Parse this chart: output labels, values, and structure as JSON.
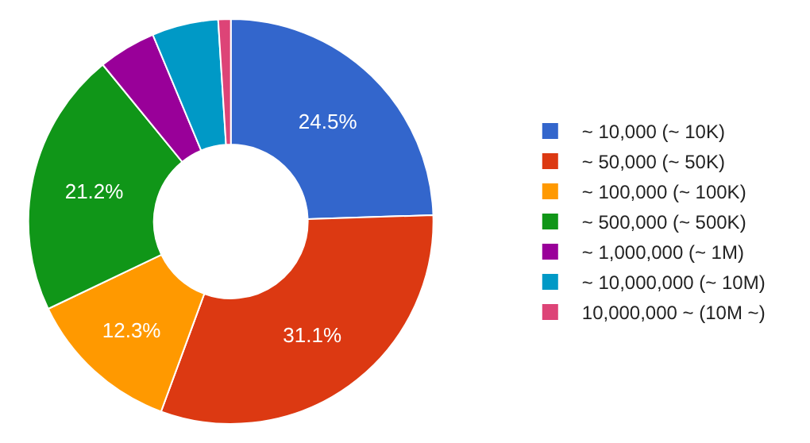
{
  "chart_data": {
    "type": "donut",
    "categories": [
      "~ 10,000 (~ 10K)",
      "~ 50,000 (~ 50K)",
      "~ 100,000 (~ 100K)",
      "~ 500,000 (~ 500K)",
      "~ 1,000,000 (~ 1M)",
      "~ 10,000,000 (~ 10M)",
      "10,000,000 ~ (10M ~)"
    ],
    "values": [
      24.5,
      31.1,
      12.3,
      21.2,
      4.6,
      5.3,
      1.0
    ],
    "value_labels": [
      "24.5%",
      "31.1%",
      "12.3%",
      "21.2%",
      null,
      null,
      null
    ],
    "colors": [
      "#3366cc",
      "#dc3912",
      "#ff9900",
      "#109618",
      "#990099",
      "#0099c6",
      "#dd4477"
    ],
    "legend": "right"
  }
}
